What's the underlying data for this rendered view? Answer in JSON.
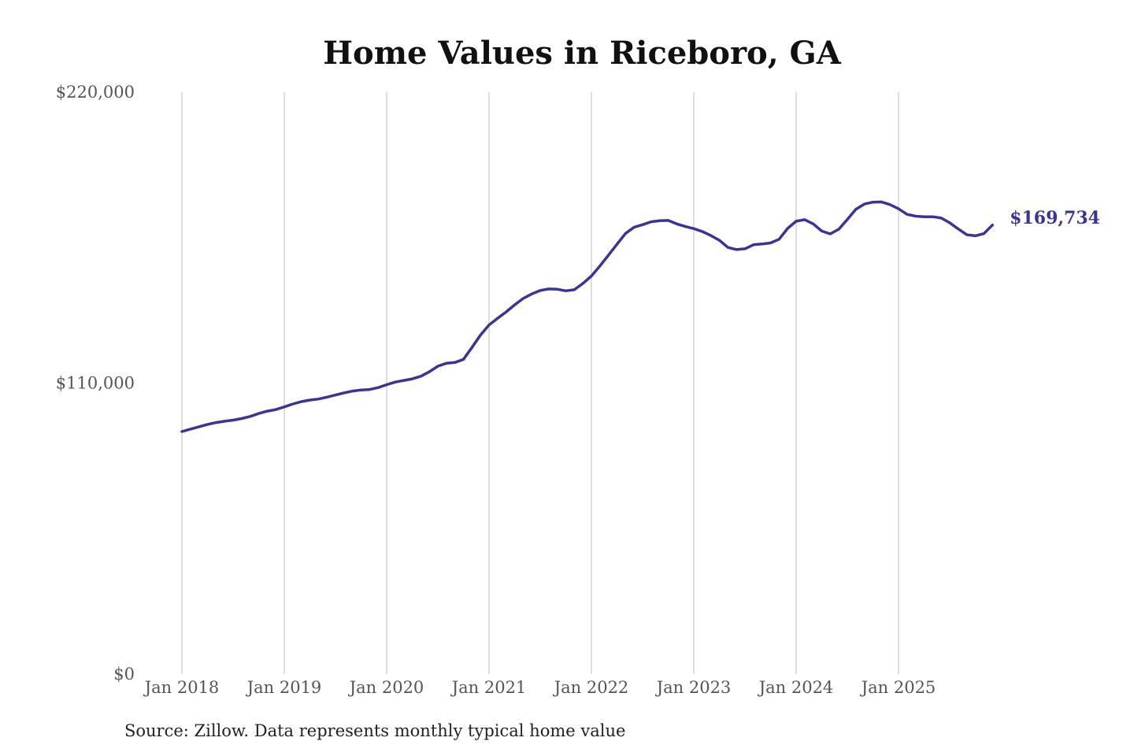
{
  "chart_data": {
    "type": "line",
    "title": "Home Values in Riceboro, GA",
    "source": "Source: Zillow. Data represents monthly typical home value",
    "xlabel": "",
    "ylabel": "",
    "ylim": [
      0,
      220000
    ],
    "yticks": [
      0,
      110000,
      220000
    ],
    "ytick_labels": [
      "$0",
      "$110,000",
      "$220,000"
    ],
    "xtick_labels": [
      "Jan 2018",
      "Jan 2019",
      "Jan 2020",
      "Jan 2021",
      "Jan 2022",
      "Jan 2023",
      "Jan 2024",
      "Jan 2025"
    ],
    "grid": "vertical",
    "line_color": "#39349a",
    "end_label": "$169,734",
    "series": [
      {
        "start": "2018-01",
        "frequency": "monthly",
        "values": [
          91700,
          92600,
          93500,
          94400,
          95100,
          95600,
          96000,
          96600,
          97400,
          98500,
          99400,
          100000,
          101000,
          102100,
          103000,
          103600,
          104000,
          104700,
          105500,
          106300,
          107000,
          107400,
          107600,
          108300,
          109400,
          110400,
          111000,
          111600,
          112600,
          114300,
          116400,
          117500,
          117800,
          119000,
          123500,
          128200,
          132000,
          134500,
          136900,
          139600,
          142000,
          143700,
          145000,
          145600,
          145500,
          144900,
          145300,
          147700,
          150500,
          154300,
          158400,
          162500,
          166600,
          168900,
          169900,
          171000,
          171400,
          171500,
          170200,
          169200,
          168400,
          167300,
          165800,
          164000,
          161300,
          160500,
          160800,
          162300,
          162600,
          163000,
          164400,
          168500,
          171200,
          171800,
          170200,
          167500,
          166400,
          168200,
          171900,
          175700,
          177700,
          178400,
          178500,
          177500,
          175900,
          173800,
          173100,
          172900,
          172900,
          172400,
          170600,
          168300,
          166100,
          165700,
          166500,
          169734
        ]
      }
    ]
  }
}
